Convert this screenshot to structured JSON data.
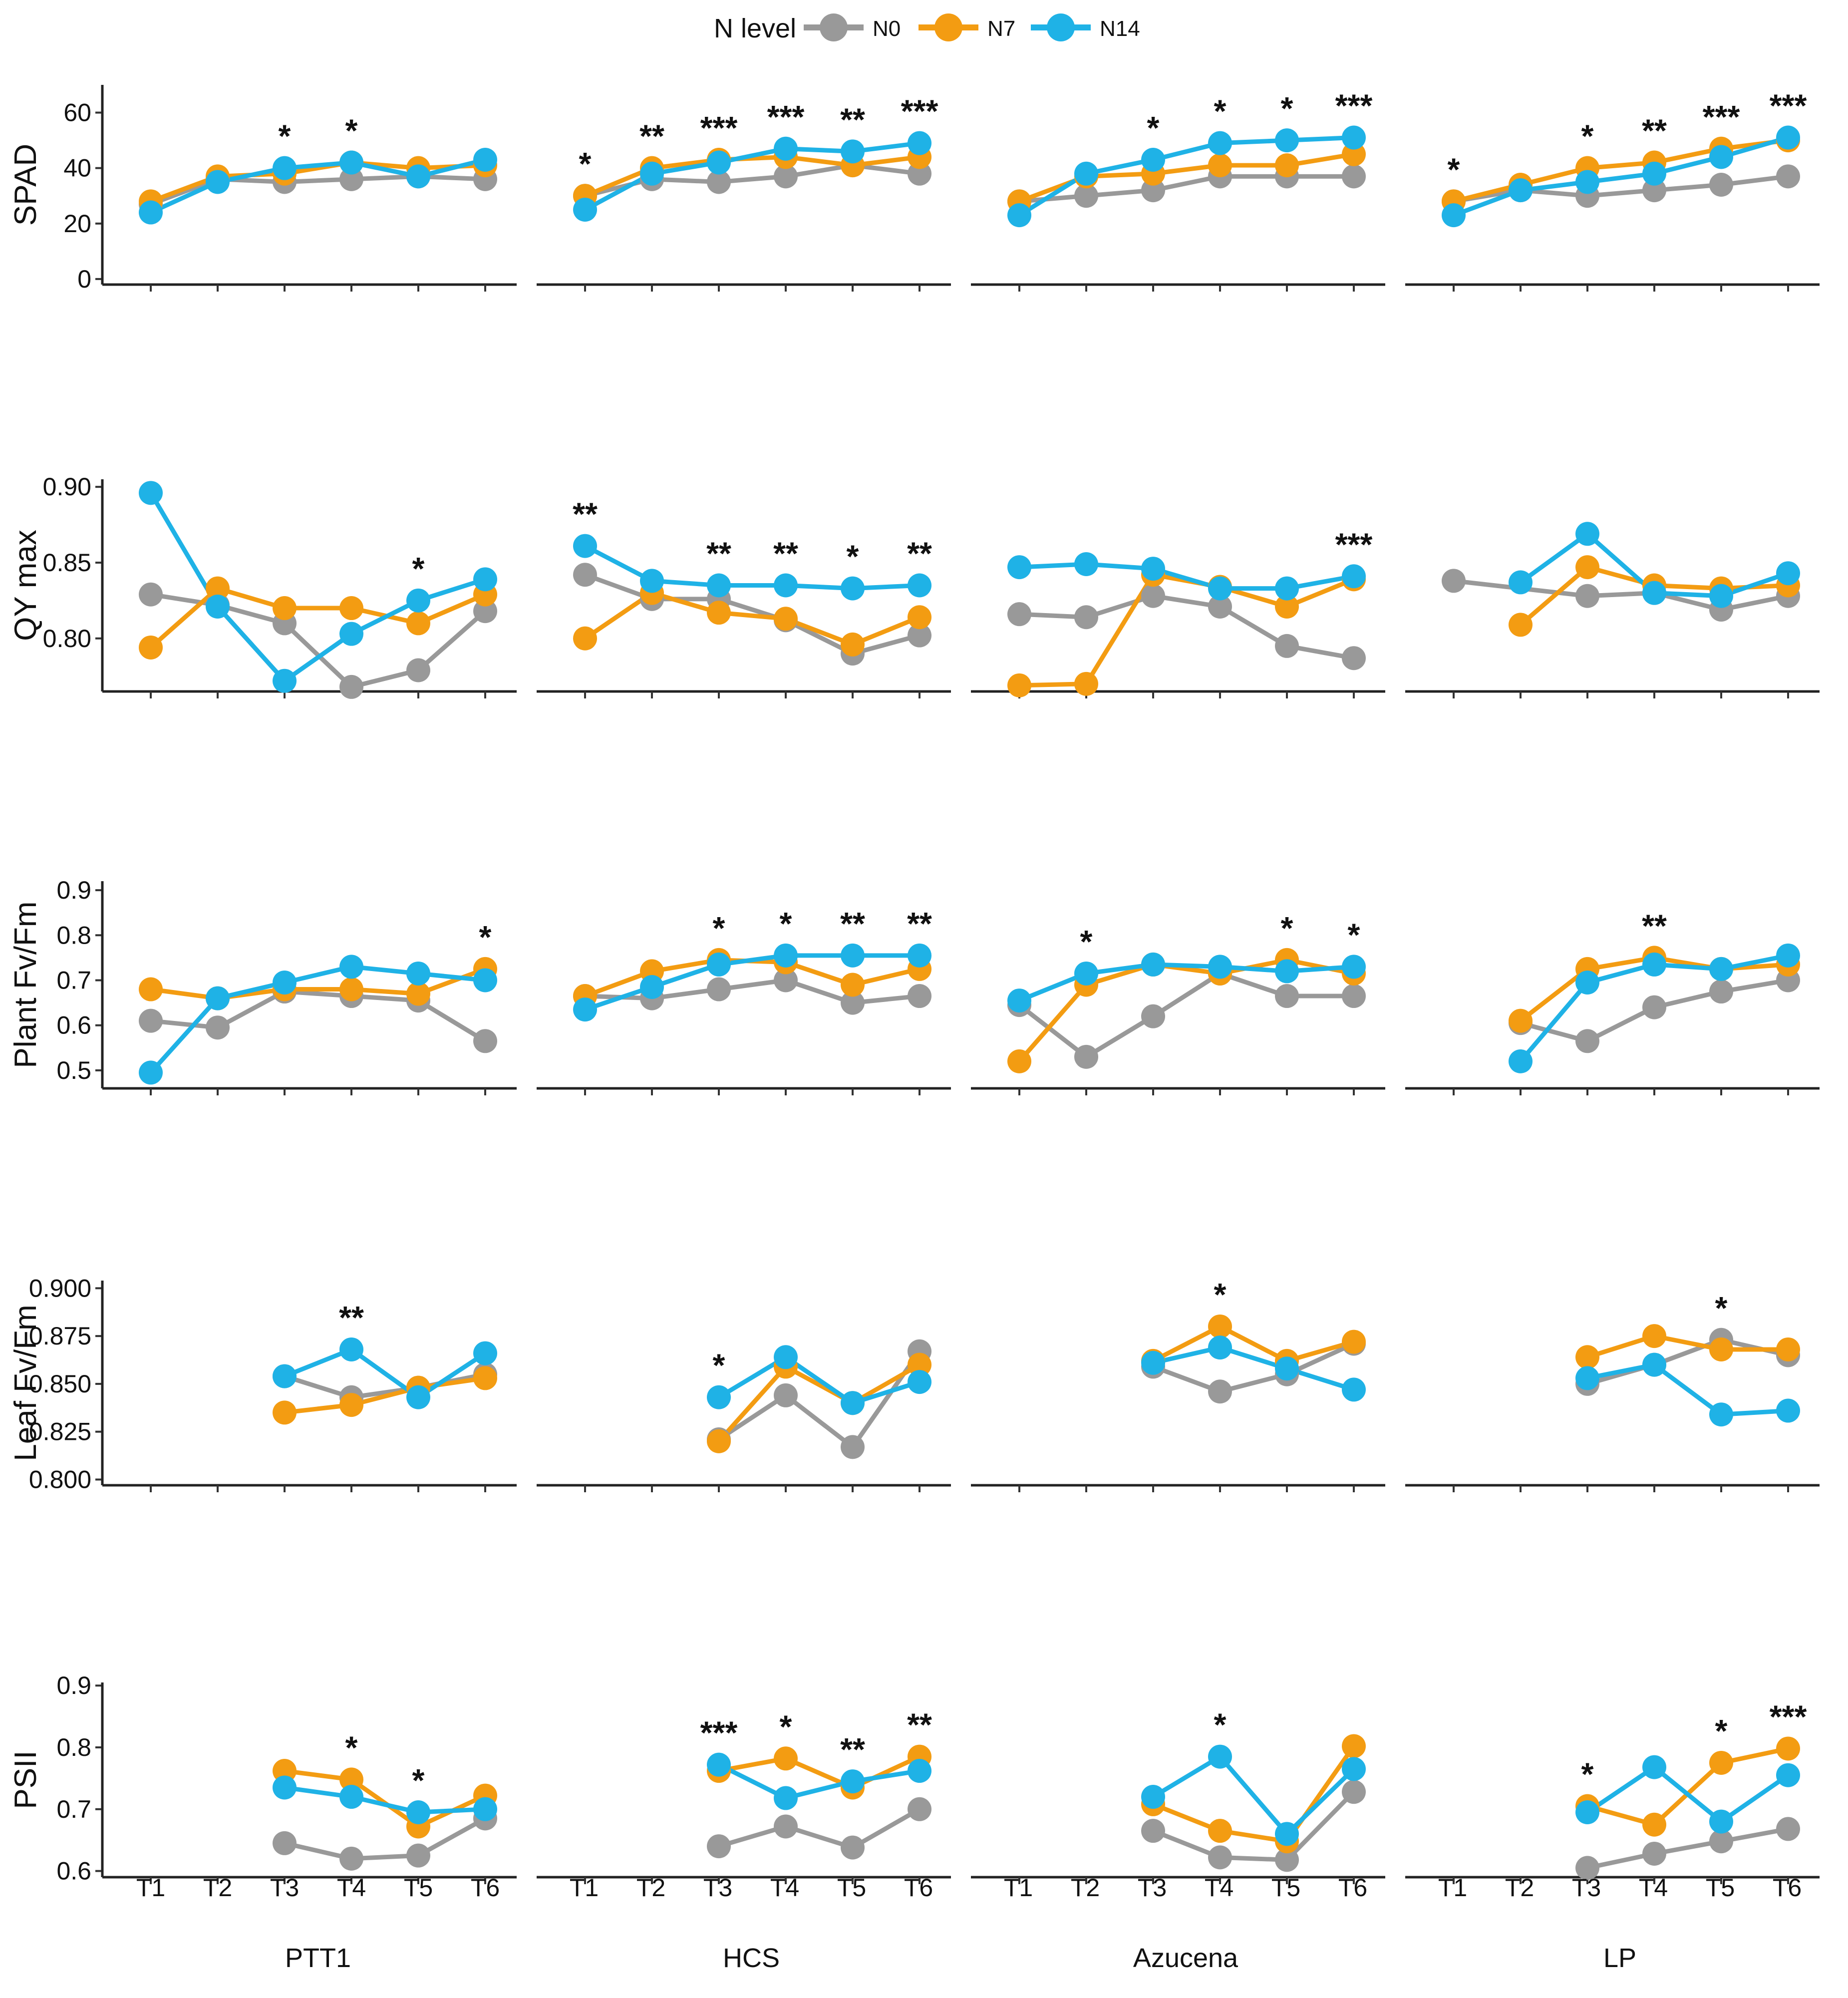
{
  "legend": {
    "title": "N level",
    "items": [
      {
        "label": "N0",
        "color": "#999999"
      },
      {
        "label": "N7",
        "color": "#F39C12"
      },
      {
        "label": "N14",
        "color": "#1FB2E6"
      }
    ]
  },
  "x_labels": [
    "T1",
    "T2",
    "T3",
    "T4",
    "T5",
    "T6"
  ],
  "cultivars": [
    "PTT1",
    "HCS",
    "Azucena",
    "LP"
  ],
  "chart_data": [
    {
      "type": "line",
      "name": "SPAD",
      "ylabel": "SPAD",
      "ylim": [
        -2,
        70
      ],
      "yticks": [
        "0",
        "20",
        "40",
        "60"
      ],
      "ytick_values": [
        0,
        20,
        40,
        60
      ],
      "panels": [
        {
          "cultivar": "PTT1",
          "series": {
            "N0": [
              27,
              36,
              35,
              36,
              37,
              36
            ],
            "N7": [
              28,
              37,
              38,
              42,
              40,
              41
            ],
            "N14": [
              24,
              35,
              40,
              42,
              37,
              43
            ]
          },
          "sig": [
            "",
            "",
            "*",
            "*",
            "",
            ""
          ]
        },
        {
          "cultivar": "HCS",
          "series": {
            "N0": [
              30,
              36,
              35,
              37,
              41,
              38
            ],
            "N7": [
              30,
              40,
              43,
              44,
              41,
              44
            ],
            "N14": [
              25,
              38,
              42,
              47,
              46,
              49
            ]
          },
          "sig": [
            "*",
            "**",
            "***",
            "***",
            "**",
            "***"
          ]
        },
        {
          "cultivar": "Azucena",
          "series": {
            "N0": [
              28,
              30,
              32,
              37,
              37,
              37
            ],
            "N7": [
              28,
              37,
              38,
              41,
              41,
              45
            ],
            "N14": [
              23,
              38,
              43,
              49,
              50,
              51
            ]
          },
          "sig": [
            "",
            "",
            "*",
            "*",
            "*",
            "***"
          ]
        },
        {
          "cultivar": "LP",
          "series": {
            "N0": [
              28,
              32,
              30,
              32,
              34,
              37
            ],
            "N7": [
              28,
              34,
              40,
              42,
              47,
              50
            ],
            "N14": [
              23,
              32,
              35,
              38,
              44,
              51
            ]
          },
          "sig": [
            "*",
            "",
            "*",
            "**",
            "***",
            "***"
          ]
        }
      ]
    },
    {
      "type": "line",
      "name": "QY max",
      "ylabel": "QY max",
      "ylim": [
        0.765,
        0.905
      ],
      "yticks": [
        "0.90",
        "0.85",
        "0.80"
      ],
      "ytick_values": [
        0.9,
        0.85,
        0.8
      ],
      "panels": [
        {
          "cultivar": "PTT1",
          "series": {
            "N0": [
              0.829,
              0.822,
              0.81,
              0.768,
              0.779,
              0.818
            ],
            "N7": [
              0.794,
              0.833,
              0.82,
              0.82,
              0.81,
              0.829
            ],
            "N14": [
              0.896,
              0.821,
              0.772,
              0.803,
              0.825,
              0.839
            ]
          },
          "sig": [
            "",
            "",
            "",
            "",
            "*",
            ""
          ]
        },
        {
          "cultivar": "HCS",
          "series": {
            "N0": [
              0.842,
              0.826,
              0.826,
              0.812,
              0.79,
              0.802
            ],
            "N7": [
              0.8,
              0.83,
              0.817,
              0.813,
              0.796,
              0.814
            ],
            "N14": [
              0.861,
              0.838,
              0.835,
              0.835,
              0.833,
              0.835
            ]
          },
          "sig": [
            "**",
            "",
            "**",
            "**",
            "*",
            "**"
          ]
        },
        {
          "cultivar": "Azucena",
          "series": {
            "N0": [
              0.816,
              0.814,
              0.828,
              0.821,
              0.795,
              0.787
            ],
            "N7": [
              0.769,
              0.77,
              0.842,
              0.834,
              0.821,
              0.839
            ],
            "N14": [
              0.847,
              0.849,
              0.846,
              0.833,
              0.833,
              0.841
            ]
          },
          "sig": [
            "",
            "",
            "",
            "",
            "",
            "***"
          ]
        },
        {
          "cultivar": "LP",
          "series": {
            "N0": [
              0.838,
              null,
              0.828,
              0.83,
              0.819,
              0.828
            ],
            "N7": [
              null,
              0.809,
              0.847,
              0.835,
              0.833,
              0.835
            ],
            "N14": [
              null,
              0.837,
              0.869,
              0.83,
              0.828,
              0.843
            ]
          },
          "sig": [
            "",
            "",
            "",
            "",
            "",
            ""
          ]
        }
      ]
    },
    {
      "type": "line",
      "name": "Plant Fv/Fm",
      "ylabel": "Plant  Fv/Fm",
      "ylim": [
        0.46,
        0.92
      ],
      "yticks": [
        "0.9",
        "0.8",
        "0.7",
        "0.6",
        "0.5"
      ],
      "ytick_values": [
        0.9,
        0.8,
        0.7,
        0.6,
        0.5
      ],
      "panels": [
        {
          "cultivar": "PTT1",
          "series": {
            "N0": [
              0.61,
              0.595,
              0.675,
              0.665,
              0.655,
              0.565
            ],
            "N7": [
              0.68,
              0.66,
              0.68,
              0.68,
              0.67,
              0.725
            ],
            "N14": [
              0.495,
              0.66,
              0.695,
              0.73,
              0.715,
              0.7
            ]
          },
          "sig": [
            "",
            "",
            "",
            "",
            "",
            "*"
          ]
        },
        {
          "cultivar": "HCS",
          "series": {
            "N0": [
              0.665,
              0.66,
              0.68,
              0.7,
              0.65,
              0.665
            ],
            "N7": [
              0.665,
              0.72,
              0.745,
              0.74,
              0.69,
              0.725
            ],
            "N14": [
              0.635,
              0.685,
              0.735,
              0.755,
              0.755,
              0.755
            ]
          },
          "sig": [
            "",
            "",
            "*",
            "*",
            "**",
            "**"
          ]
        },
        {
          "cultivar": "Azucena",
          "series": {
            "N0": [
              0.645,
              0.53,
              0.62,
              0.715,
              0.665,
              0.665
            ],
            "N7": [
              0.52,
              0.69,
              0.735,
              0.715,
              0.745,
              0.715
            ],
            "N14": [
              0.655,
              0.715,
              0.735,
              0.73,
              0.72,
              0.73
            ]
          },
          "sig": [
            "",
            "*",
            "",
            "",
            "*",
            "*"
          ]
        },
        {
          "cultivar": "LP",
          "series": {
            "N0": [
              null,
              0.605,
              0.565,
              0.64,
              0.675,
              0.7
            ],
            "N7": [
              null,
              0.61,
              0.725,
              0.75,
              0.725,
              0.735
            ],
            "N14": [
              null,
              0.52,
              0.695,
              0.735,
              0.725,
              0.755
            ]
          },
          "sig": [
            "",
            "",
            "",
            "**",
            "",
            ""
          ]
        }
      ]
    },
    {
      "type": "line",
      "name": "Leaf Fv/Fm",
      "ylabel": "Leaf  Fv/Fm",
      "ylim": [
        0.797,
        0.904
      ],
      "yticks": [
        "0.900",
        "0.875",
        "0.850",
        "0.825",
        "0.800"
      ],
      "ytick_values": [
        0.9,
        0.875,
        0.85,
        0.825,
        0.8
      ],
      "panels": [
        {
          "cultivar": "PTT1",
          "series": {
            "N0": [
              null,
              null,
              0.854,
              0.843,
              0.848,
              0.855
            ],
            "N7": [
              null,
              null,
              0.835,
              0.839,
              0.848,
              0.853
            ],
            "N14": [
              null,
              null,
              0.854,
              0.868,
              0.843,
              0.866
            ]
          },
          "sig": [
            "",
            "",
            "",
            "**",
            "",
            ""
          ]
        },
        {
          "cultivar": "HCS",
          "series": {
            "N0": [
              null,
              null,
              0.821,
              0.844,
              0.817,
              0.867
            ],
            "N7": [
              null,
              null,
              0.82,
              0.859,
              0.84,
              0.86
            ],
            "N14": [
              null,
              null,
              0.843,
              0.864,
              0.84,
              0.851
            ]
          },
          "sig": [
            "",
            "",
            "*",
            "",
            "",
            ""
          ]
        },
        {
          "cultivar": "Azucena",
          "series": {
            "N0": [
              null,
              null,
              0.859,
              0.846,
              0.855,
              0.871
            ],
            "N7": [
              null,
              null,
              0.862,
              0.88,
              0.862,
              0.872
            ],
            "N14": [
              null,
              null,
              0.861,
              0.869,
              0.858,
              0.847
            ]
          },
          "sig": [
            "",
            "",
            "",
            "*",
            "",
            ""
          ]
        },
        {
          "cultivar": "LP",
          "series": {
            "N0": [
              null,
              null,
              0.85,
              0.86,
              0.873,
              0.865
            ],
            "N7": [
              null,
              null,
              0.864,
              0.875,
              0.868,
              0.868
            ],
            "N14": [
              null,
              null,
              0.853,
              0.86,
              0.834,
              0.836
            ]
          },
          "sig": [
            "",
            "",
            "",
            "",
            "*",
            ""
          ]
        }
      ]
    },
    {
      "type": "line",
      "name": "PSII",
      "ylabel": "PSII",
      "ylim": [
        0.59,
        0.905
      ],
      "yticks": [
        "0.9",
        "0.8",
        "0.7",
        "0.6"
      ],
      "ytick_values": [
        0.9,
        0.8,
        0.7,
        0.6
      ],
      "panels": [
        {
          "cultivar": "PTT1",
          "series": {
            "N0": [
              null,
              null,
              0.645,
              0.62,
              0.625,
              0.685
            ],
            "N7": [
              null,
              null,
              0.762,
              0.748,
              0.672,
              0.722
            ],
            "N14": [
              null,
              null,
              0.735,
              0.72,
              0.695,
              0.7
            ]
          },
          "sig": [
            "",
            "",
            "",
            "*",
            "*",
            ""
          ]
        },
        {
          "cultivar": "HCS",
          "series": {
            "N0": [
              null,
              null,
              0.64,
              0.672,
              0.638,
              0.7
            ],
            "N7": [
              null,
              null,
              0.762,
              0.782,
              0.735,
              0.785
            ],
            "N14": [
              null,
              null,
              0.772,
              0.718,
              0.745,
              0.762
            ]
          },
          "sig": [
            "",
            "",
            "***",
            "*",
            "**",
            "**"
          ]
        },
        {
          "cultivar": "Azucena",
          "series": {
            "N0": [
              null,
              null,
              0.665,
              0.622,
              0.618,
              0.728
            ],
            "N7": [
              null,
              null,
              0.708,
              0.665,
              0.648,
              0.802
            ],
            "N14": [
              null,
              null,
              0.72,
              0.785,
              0.66,
              0.765
            ]
          },
          "sig": [
            "",
            "",
            "",
            "*",
            "",
            ""
          ]
        },
        {
          "cultivar": "LP",
          "series": {
            "N0": [
              null,
              null,
              0.605,
              0.628,
              0.648,
              0.668
            ],
            "N7": [
              null,
              null,
              0.705,
              0.675,
              0.775,
              0.798
            ],
            "N14": [
              null,
              null,
              0.695,
              0.768,
              0.68,
              0.755
            ]
          },
          "sig": [
            "",
            "",
            "*",
            "",
            "*",
            "***"
          ]
        }
      ]
    }
  ]
}
